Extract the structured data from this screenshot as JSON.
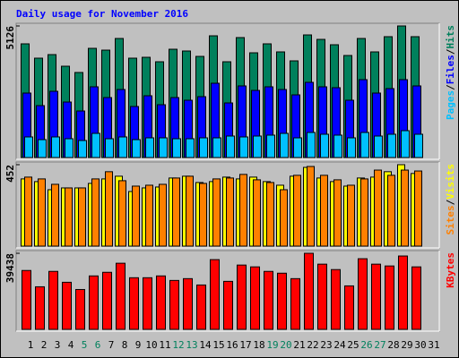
{
  "title": "Daily usage for November 2016",
  "legend_separator": "/",
  "weekend_color": "#00805c",
  "weekend_categories": [
    "5",
    "6",
    "12",
    "13",
    "19",
    "20",
    "26",
    "27"
  ],
  "chart_data": [
    {
      "type": "bar",
      "categories": [
        "1",
        "2",
        "3",
        "4",
        "5",
        "6",
        "7",
        "8",
        "9",
        "10",
        "11",
        "12",
        "13",
        "14",
        "15",
        "16",
        "17",
        "18",
        "19",
        "20",
        "21",
        "22",
        "23",
        "24",
        "25",
        "26",
        "27",
        "28",
        "29",
        "30",
        "31"
      ],
      "ylim": [
        0,
        5126
      ],
      "yticks": [
        5126
      ],
      "series": [
        {
          "name": "Hits",
          "color": "#00805c",
          "values": [
            4429,
            3871,
            4010,
            3557,
            3313,
            4254,
            4184,
            4638,
            3871,
            3905,
            3731,
            4219,
            4150,
            3940,
            4742,
            3731,
            4673,
            4080,
            4429,
            4115,
            3766,
            4777,
            4603,
            4394,
            3975,
            4638,
            4115,
            4708,
            5126,
            4708,
            null
          ]
        },
        {
          "name": "Files",
          "color": "#0000ff",
          "values": [
            2511,
            2022,
            2580,
            2162,
            1813,
            2755,
            2336,
            2650,
            1988,
            2406,
            2057,
            2336,
            2232,
            2371,
            2894,
            2127,
            2790,
            2615,
            2755,
            2650,
            2441,
            2929,
            2755,
            2720,
            2232,
            3034,
            2511,
            2685,
            3034,
            2790,
            null
          ]
        },
        {
          "name": "Pages",
          "color": "#00c0ff",
          "values": [
            802,
            697,
            802,
            732,
            663,
            941,
            732,
            802,
            697,
            767,
            767,
            732,
            732,
            767,
            767,
            837,
            802,
            837,
            872,
            941,
            767,
            976,
            907,
            872,
            767,
            976,
            837,
            907,
            1046,
            907,
            null
          ]
        }
      ]
    },
    {
      "type": "bar",
      "categories": [
        "1",
        "2",
        "3",
        "4",
        "5",
        "6",
        "7",
        "8",
        "9",
        "10",
        "11",
        "12",
        "13",
        "14",
        "15",
        "16",
        "17",
        "18",
        "19",
        "20",
        "21",
        "22",
        "23",
        "24",
        "25",
        "26",
        "27",
        "28",
        "29",
        "30",
        "31"
      ],
      "ylim": [
        0,
        452
      ],
      "yticks": [
        452
      ],
      "series": [
        {
          "name": "Visits",
          "color": "#ffff00",
          "values": [
            373,
            358,
            313,
            323,
            323,
            348,
            373,
            388,
            303,
            323,
            328,
            378,
            388,
            353,
            358,
            383,
            373,
            383,
            358,
            338,
            388,
            437,
            378,
            358,
            333,
            378,
            383,
            413,
            452,
            403,
            null
          ]
        },
        {
          "name": "Sites",
          "color": "#ff8000",
          "values": [
            383,
            373,
            343,
            323,
            323,
            373,
            413,
            363,
            333,
            338,
            343,
            378,
            388,
            348,
            373,
            378,
            398,
            368,
            353,
            313,
            393,
            442,
            393,
            368,
            338,
            373,
            422,
            393,
            422,
            417,
            null
          ]
        }
      ]
    },
    {
      "type": "bar",
      "categories": [
        "1",
        "2",
        "3",
        "4",
        "5",
        "6",
        "7",
        "8",
        "9",
        "10",
        "11",
        "12",
        "13",
        "14",
        "15",
        "16",
        "17",
        "18",
        "19",
        "20",
        "21",
        "22",
        "23",
        "24",
        "25",
        "26",
        "27",
        "28",
        "29",
        "30",
        "31"
      ],
      "ylim": [
        0,
        39438
      ],
      "yticks": [
        39438
      ],
      "series": [
        {
          "name": "KBytes",
          "color": "#ff0000",
          "values": [
            30518,
            22067,
            30048,
            24414,
            20658,
            27701,
            29579,
            34274,
            26762,
            26762,
            27701,
            25353,
            26292,
            23006,
            36152,
            24884,
            33335,
            32396,
            30048,
            29109,
            26292,
            39438,
            33804,
            30987,
            22536,
            36621,
            33804,
            32865,
            38030,
            32396,
            null
          ]
        }
      ]
    }
  ]
}
